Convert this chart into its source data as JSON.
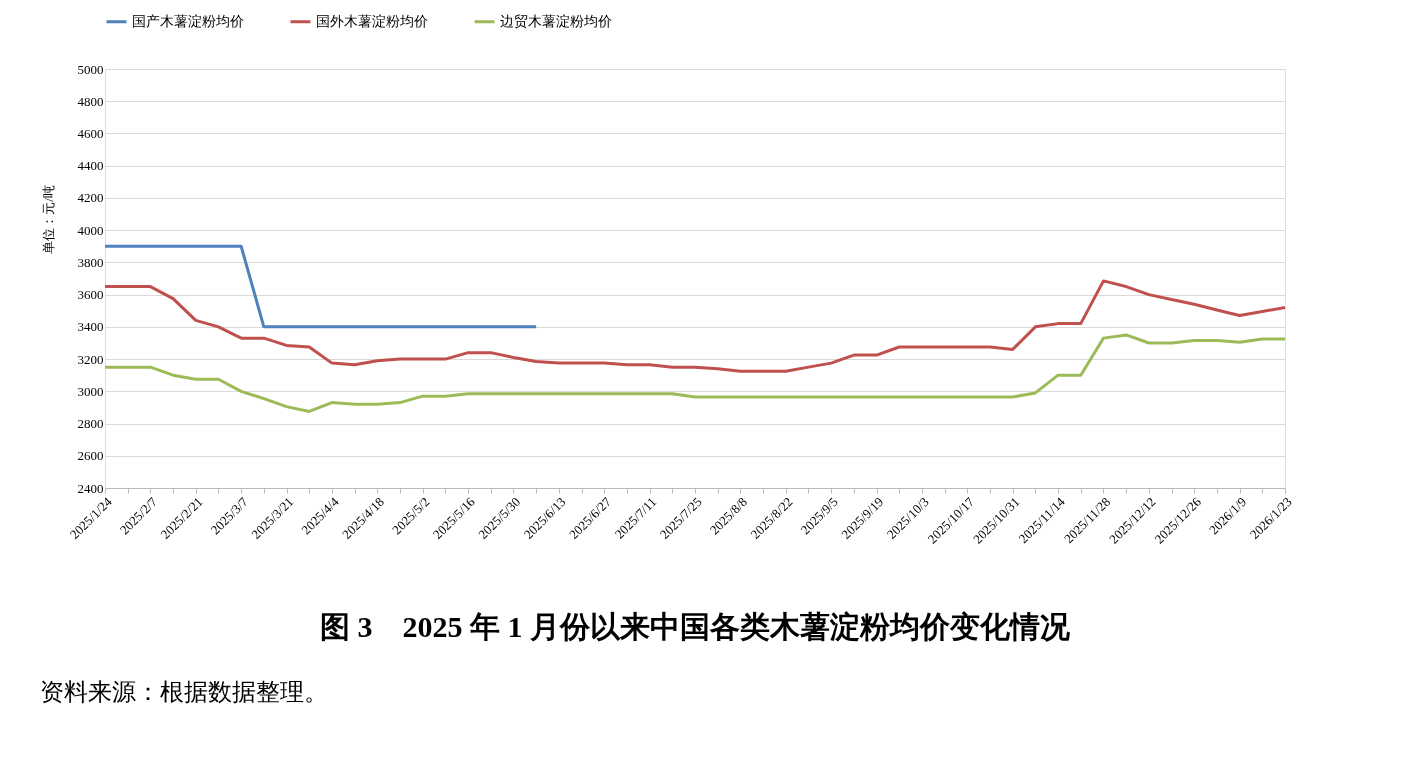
{
  "chart_data": {
    "type": "line",
    "title": "图 3　2025 年 1 月份以来中国各类木薯淀粉均价变化情况",
    "ylabel": "单位：元/吨",
    "annotations": [
      "资料来源：根据数据整理。"
    ],
    "categories": [
      "2025/1/24",
      null,
      "2025/2/7",
      null,
      "2025/2/21",
      null,
      "2025/3/7",
      null,
      "2025/3/21",
      null,
      "2025/4/4",
      null,
      "2025/4/18",
      null,
      "2025/5/2",
      null,
      "2025/5/16",
      null,
      "2025/5/30",
      null,
      "2025/6/13",
      null,
      "2025/6/27",
      null,
      "2025/7/11",
      null,
      "2025/7/25",
      null,
      "2025/8/8",
      null,
      "2025/8/22",
      null,
      "2025/9/5",
      null,
      "2025/9/19",
      null,
      "2025/10/3",
      null,
      "2025/10/17",
      null,
      "2025/10/31",
      null,
      "2025/11/14",
      null,
      "2025/11/28",
      null,
      "2025/12/12",
      null,
      "2025/12/26",
      null,
      "2026/1/9",
      null,
      "2026/1/23"
    ],
    "series": [
      {
        "name": "国产木薯淀粉均价",
        "color": "#4f81bd",
        "values": [
          3900,
          3900,
          3900,
          3900,
          3900,
          3900,
          3900,
          3400,
          3400,
          3400,
          3400,
          3400,
          3400,
          3400,
          3400,
          3400,
          3400,
          3400,
          3400,
          3400,
          null,
          null,
          null,
          null,
          null,
          null,
          null,
          null,
          null,
          null,
          null,
          null,
          null,
          null,
          null,
          null,
          null,
          null,
          null,
          null,
          null,
          null,
          null,
          null,
          null,
          null,
          null,
          null,
          null,
          null,
          null,
          null,
          null
        ]
      },
      {
        "name": "国外木薯淀粉均价",
        "color": "#c0504d",
        "values": [
          3650,
          3650,
          3650,
          3575,
          3440,
          3400,
          3330,
          3330,
          3285,
          3275,
          3175,
          3165,
          3190,
          3200,
          3200,
          3200,
          3240,
          3240,
          3210,
          3185,
          3175,
          3175,
          3175,
          3165,
          3165,
          3150,
          3150,
          3140,
          3125,
          3125,
          3125,
          3150,
          3175,
          3225,
          3225,
          3275,
          3275,
          3275,
          3275,
          3275,
          3260,
          3400,
          3420,
          3420,
          3685,
          3650,
          3600,
          3570,
          3540,
          3505,
          3470,
          3495,
          3520
        ]
      },
      {
        "name": "边贸木薯淀粉均价",
        "color": "#9bbb59",
        "values": [
          3150,
          3150,
          3150,
          3100,
          3075,
          3075,
          3000,
          2955,
          2905,
          2875,
          2930,
          2920,
          2920,
          2930,
          2970,
          2970,
          2985,
          2985,
          2985,
          2985,
          2985,
          2985,
          2985,
          2985,
          2985,
          2985,
          2965,
          2965,
          2965,
          2965,
          2965,
          2965,
          2965,
          2965,
          2965,
          2965,
          2965,
          2965,
          2965,
          2965,
          2965,
          2990,
          3100,
          3100,
          3330,
          3350,
          3300,
          3300,
          3315,
          3315,
          3305,
          3325,
          3325
        ]
      }
    ],
    "ylim": [
      2400,
      5000
    ],
    "yticks": [
      2400,
      2600,
      2800,
      3000,
      3200,
      3400,
      3600,
      3800,
      4000,
      4200,
      4400,
      4600,
      4800,
      5000
    ],
    "grid": "y",
    "legend": "top",
    "marker": "none",
    "line_style": "solid"
  }
}
